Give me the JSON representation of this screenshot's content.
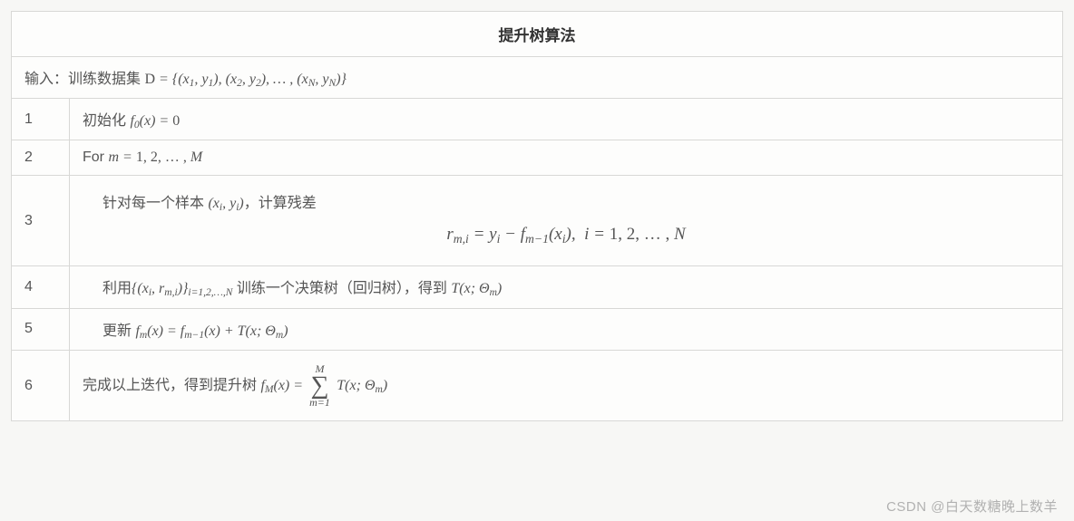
{
  "title": "提升树算法",
  "input_label": "输入：训练数据集 ",
  "input_math": "D = {(x₁, y₁),(x₂, y₂),…,(x_N, y_N)}",
  "steps": [
    {
      "n": "1",
      "text_pre": "初始化 ",
      "math": "f₀(x) = 0"
    },
    {
      "n": "2",
      "text_pre": "For ",
      "math": "m = 1,2,…,M"
    },
    {
      "n": "3",
      "line1_pre": "针对每一个样本 ",
      "line1_math": "(xᵢ, yᵢ)",
      "line1_post": "，计算残差",
      "eq": "r_{m,i} = yᵢ − f_{m−1}(xᵢ),  i = 1,2,…,N"
    },
    {
      "n": "4",
      "pre": "利用",
      "set": "{(xᵢ, r_{m,i})}_{i=1,2,…,N}",
      "mid": " 训练一个决策树（回归树），得到 ",
      "tail": "T(x; Θ_m)"
    },
    {
      "n": "5",
      "pre": "更新 ",
      "math": "f_m(x) = f_{m−1}(x) + T(x; Θ_m)"
    },
    {
      "n": "6",
      "pre": "完成以上迭代，得到提升树 ",
      "math_lhs": "f_M(x) = ",
      "sum_top": "M",
      "sum_bot": "m=1",
      "math_rhs": "T(x; Θ_m)"
    }
  ],
  "watermark": "CSDN @白天数糖晚上数羊",
  "colors": {
    "border": "#d8d8d6",
    "bg": "#fdfdfc",
    "text": "#4a4a4a"
  }
}
